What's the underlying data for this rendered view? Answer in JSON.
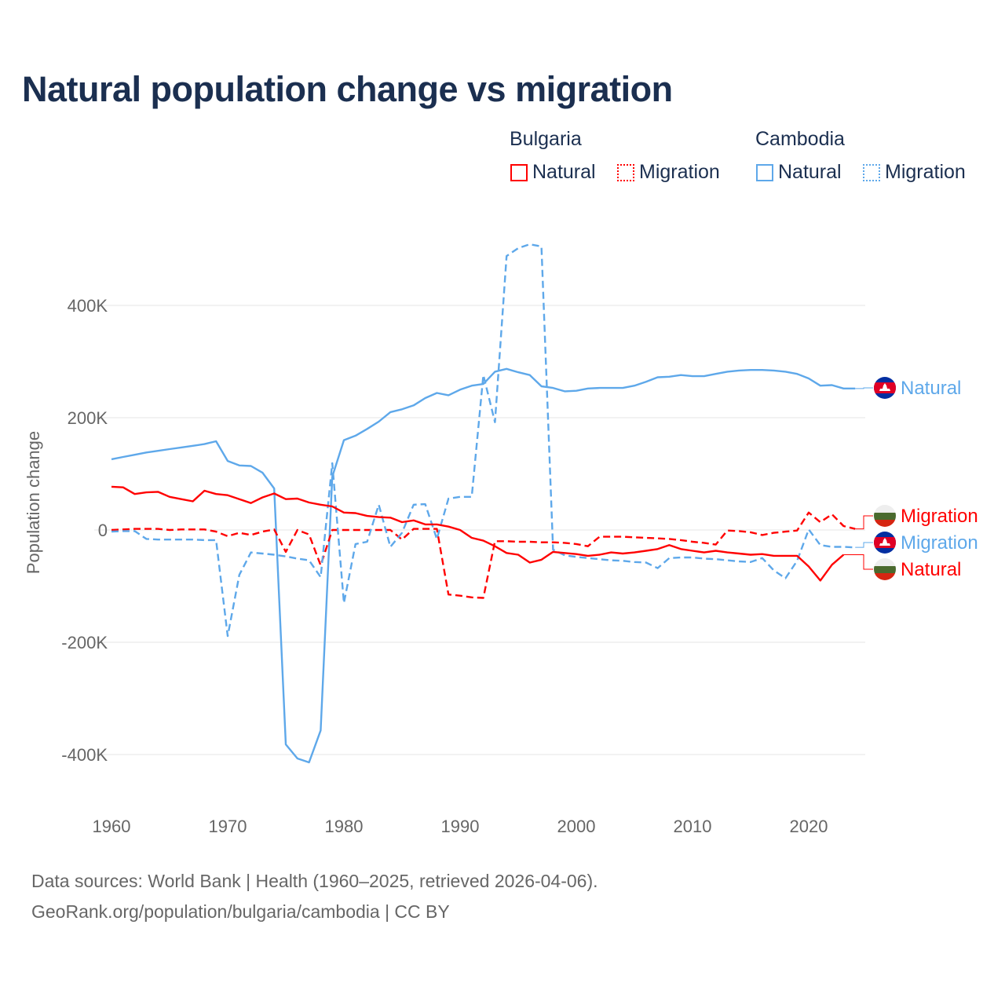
{
  "title": "Natural population change vs migration",
  "legend": {
    "groups": [
      {
        "name": "Bulgaria",
        "items": [
          "Natural",
          "Migration"
        ]
      },
      {
        "name": "Cambodia",
        "items": [
          "Natural",
          "Migration"
        ]
      }
    ]
  },
  "colors": {
    "bulgaria": "#ff0000",
    "cambodia": "#5ea8ea",
    "title": "#1b2f50"
  },
  "footer": {
    "line1": "Data sources: World Bank | Health (1960–2025, retrieved 2026-04-06).",
    "line2": "GeoRank.org/population/bulgaria/cambodia | CC BY"
  },
  "chart_data": {
    "type": "line",
    "title": "Natural population change vs migration",
    "xlabel": "",
    "ylabel": "Population change",
    "xlim": [
      1960,
      2025
    ],
    "ylim": [
      -500,
      520
    ],
    "y_unit": "thousands",
    "x_ticks": [
      1960,
      1970,
      1980,
      1990,
      2000,
      2010,
      2020
    ],
    "x_tick_labels": [
      "1960",
      "1970",
      "1980",
      "1990",
      "2000",
      "2010",
      "2020"
    ],
    "y_ticks": [
      400,
      200,
      0,
      -200,
      -400
    ],
    "y_tick_labels": [
      "400K",
      "200K",
      "0",
      "-200K",
      "-400K"
    ],
    "grid": true,
    "legend_position": "top-right",
    "series": [
      {
        "name": "Cambodia Natural",
        "country": "Cambodia",
        "kind": "Natural",
        "end_label": "Natural",
        "start": 1960,
        "values": [
          126,
          130,
          134,
          138,
          141,
          144,
          147,
          150,
          153,
          158,
          123,
          115,
          114,
          102,
          74,
          -382,
          -407,
          -414,
          -357,
          95,
          160,
          168,
          180,
          193,
          210,
          215,
          222,
          235,
          244,
          240,
          250,
          257,
          260,
          282,
          287,
          281,
          276,
          256,
          253,
          247,
          248,
          252,
          253,
          253,
          253,
          257,
          264,
          272,
          273,
          276,
          274,
          274,
          278,
          282,
          284,
          285,
          285,
          284,
          282,
          278,
          270,
          257,
          258,
          252,
          252
        ]
      },
      {
        "name": "Bulgaria Migration",
        "country": "Bulgaria",
        "kind": "Migration",
        "end_label": "Migration",
        "start": 1960,
        "values": [
          0,
          1,
          2,
          2,
          2,
          0,
          1,
          1,
          1,
          -3,
          -11,
          -5,
          -9,
          -3,
          1,
          -39,
          0,
          -8,
          -63,
          0,
          0,
          0,
          0,
          0,
          0,
          -17,
          2,
          2,
          2,
          -115,
          -117,
          -120,
          -121,
          -20,
          -20,
          -21,
          -21,
          -22,
          -22,
          -23,
          -25,
          -29,
          -12,
          -12,
          -12,
          -13,
          -14,
          -15,
          -16,
          -18,
          -21,
          -23,
          -26,
          -1,
          -2,
          -4,
          -9,
          -5,
          -3,
          -1,
          31,
          14,
          28,
          7,
          2
        ]
      },
      {
        "name": "Cambodia Migration",
        "country": "Cambodia",
        "kind": "Migration",
        "end_label": "Migration",
        "start": 1960,
        "values": [
          -3,
          -2,
          -2,
          -16,
          -17,
          -17,
          -17,
          -17,
          -18,
          -18,
          -189,
          -80,
          -40,
          -42,
          -44,
          -47,
          -51,
          -54,
          -84,
          119,
          -130,
          -25,
          -21,
          45,
          -30,
          -5,
          45,
          46,
          -16,
          56,
          59,
          59,
          276,
          192,
          488,
          502,
          509,
          505,
          -35,
          -45,
          -48,
          -50,
          -52,
          -54,
          -55,
          -57,
          -58,
          -68,
          -50,
          -49,
          -49,
          -51,
          -52,
          -54,
          -56,
          -57,
          -50,
          -72,
          -86,
          -55,
          1,
          -27,
          -30,
          -30,
          -31
        ]
      },
      {
        "name": "Bulgaria Natural",
        "country": "Bulgaria",
        "kind": "Natural",
        "end_label": "Natural",
        "start": 1960,
        "values": [
          77,
          76,
          64,
          67,
          68,
          59,
          55,
          51,
          70,
          64,
          62,
          55,
          48,
          58,
          65,
          55,
          56,
          49,
          45,
          42,
          31,
          30,
          25,
          23,
          22,
          14,
          17,
          10,
          10,
          6,
          0,
          -14,
          -19,
          -29,
          -41,
          -44,
          -58,
          -53,
          -39,
          -41,
          -43,
          -46,
          -44,
          -40,
          -42,
          -40,
          -37,
          -34,
          -27,
          -34,
          -37,
          -40,
          -37,
          -40,
          -42,
          -44,
          -43,
          -46,
          -46,
          -46,
          -65,
          -90,
          -62,
          -44
        ]
      }
    ]
  }
}
